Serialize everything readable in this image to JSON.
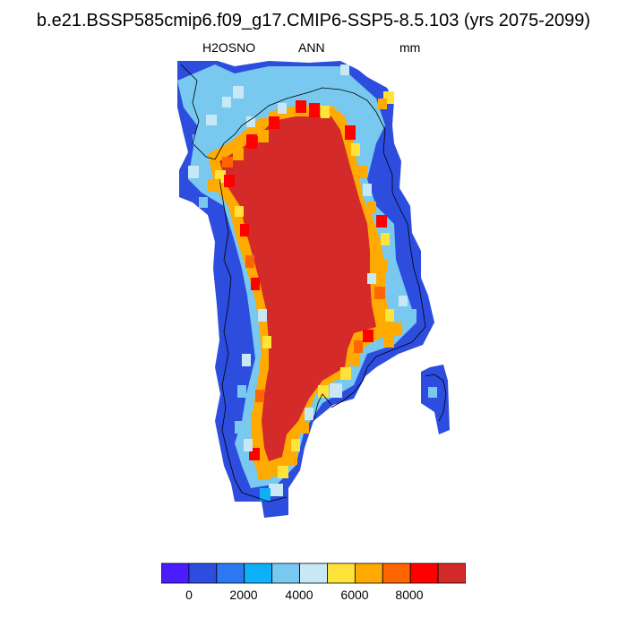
{
  "title": "b.e21.BSSP585cmip6.f09_g17.CMIP6-SSP5-8.5.103 (yrs 2075-2099)",
  "variable": "H2OSNO",
  "period": "ANN",
  "units": "mm",
  "colorbar": {
    "colors": [
      "#4a1cff",
      "#2d4ddf",
      "#2b78f2",
      "#0fb0fa",
      "#78c8f0",
      "#c8e8f5",
      "#ffe33a",
      "#ffaa00",
      "#ff6500",
      "#ff0000",
      "#d42a2a"
    ],
    "ticks": [
      "0",
      "2000",
      "4000",
      "6000",
      "8000"
    ]
  },
  "map_colors": {
    "ocean_edge": "#2d4ddf",
    "interior": "#d42a2a",
    "coast": "#000000"
  },
  "chart_data": {
    "type": "heatmap",
    "title": "b.e21.BSSP585cmip6.f09_g17.CMIP6-SSP5-8.5.103 (yrs 2075-2099)",
    "variable": "H2OSNO",
    "period": "ANN",
    "units": "mm",
    "color_levels": [
      -1000,
      0,
      1000,
      2000,
      3000,
      4000,
      5000,
      6000,
      7000,
      8000,
      9000,
      10000
    ],
    "field_description_levels": {
      "ice_sheet_interior": 10000,
      "margin_band": [
        5000,
        9000
      ],
      "coastal_periphery": [
        0,
        1000
      ]
    },
    "region": "Greenland"
  }
}
